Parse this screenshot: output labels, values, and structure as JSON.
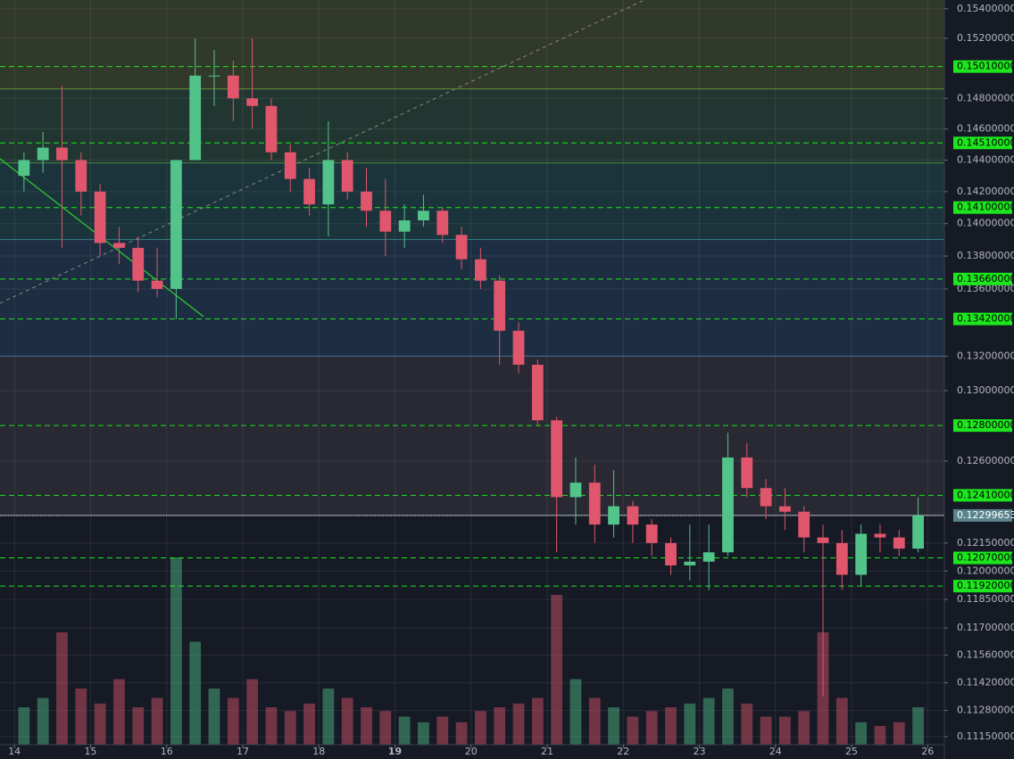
{
  "chart_data": {
    "type": "candlestick",
    "log": true,
    "grid": true,
    "up_color": "#52c48a",
    "down_color": "#e0566c",
    "xlim": [
      13.81,
      26.22
    ],
    "xticks": [
      14,
      15,
      16,
      17,
      18,
      19,
      20,
      21,
      22,
      23,
      24,
      25,
      26
    ],
    "bold_xtick": 19,
    "ylim": [
      0.1111,
      0.1546
    ],
    "yticks": [
      {
        "value": 0.154,
        "label": "0.15400000"
      },
      {
        "value": 0.152,
        "label": "0.15200000"
      },
      {
        "value": 0.148,
        "label": "0.14800000"
      },
      {
        "value": 0.146,
        "label": "0.14600000"
      },
      {
        "value": 0.144,
        "label": "0.14400000"
      },
      {
        "value": 0.142,
        "label": "0.14200000"
      },
      {
        "value": 0.14,
        "label": "0.14000000"
      },
      {
        "value": 0.138,
        "label": "0.13800000"
      },
      {
        "value": 0.136,
        "label": "0.13600000"
      },
      {
        "value": 0.132,
        "label": "0.13200000"
      },
      {
        "value": 0.13,
        "label": "0.13000000"
      },
      {
        "value": 0.126,
        "label": "0.12600000"
      },
      {
        "value": 0.1215,
        "label": "0.12150000"
      },
      {
        "value": 0.12,
        "label": "0.12000000"
      },
      {
        "value": 0.1185,
        "label": "0.11850000"
      },
      {
        "value": 0.117,
        "label": "0.11700000"
      },
      {
        "value": 0.1156,
        "label": "0.11560000"
      },
      {
        "value": 0.1142,
        "label": "0.11420000"
      },
      {
        "value": 0.1128,
        "label": "0.11280000"
      },
      {
        "value": 0.1115,
        "label": "0.11150000"
      }
    ],
    "zone_bounds": [
      0.1486,
      0.1438,
      0.139,
      0.132,
      0.123
    ],
    "zone_colors": [
      "#363f2c",
      "#233c33",
      "#1c3a40",
      "#1e3248",
      "#2b2d36"
    ],
    "zone_line_colors": [
      "#8fbf3a",
      "#5cbf4a",
      "#3fa8a8",
      "#3f8fbf",
      "#9aa0aa"
    ],
    "levels": [
      {
        "value": 0.1501,
        "label": "0.15010000"
      },
      {
        "value": 0.1451,
        "label": "0.14510000"
      },
      {
        "value": 0.141,
        "label": "0.14100000"
      },
      {
        "value": 0.1366,
        "label": "0.13660000"
      },
      {
        "value": 0.1342,
        "label": "0.13420000"
      },
      {
        "value": 0.128,
        "label": "0.12800000"
      },
      {
        "value": 0.1241,
        "label": "0.12410000"
      },
      {
        "value": 0.1207,
        "label": "0.12070000"
      },
      {
        "value": 0.1192,
        "label": "0.11920000"
      }
    ],
    "level_color": "#1ee61e",
    "current_price": {
      "value": 0.12299653,
      "label": "0.12299653"
    },
    "x": [
      14,
      14.25,
      14.5,
      14.75,
      15,
      15.25,
      15.5,
      15.75,
      16,
      16.25,
      16.5,
      16.75,
      17,
      17.25,
      17.5,
      17.75,
      18,
      18.25,
      18.5,
      18.75,
      19,
      19.25,
      19.5,
      19.75,
      20,
      20.25,
      20.5,
      20.75,
      21,
      21.25,
      21.5,
      21.75,
      22,
      22.25,
      22.5,
      22.75,
      23,
      23.25,
      23.5,
      23.75,
      24,
      24.25,
      24.5,
      24.75,
      25,
      25.25,
      25.5,
      25.75
    ],
    "open": [
      0.143,
      0.144,
      0.1448,
      0.144,
      0.142,
      0.1388,
      0.1385,
      0.1365,
      0.136,
      0.144,
      0.1495,
      0.1495,
      0.148,
      0.1475,
      0.1445,
      0.1428,
      0.1412,
      0.144,
      0.142,
      0.1408,
      0.1395,
      0.1402,
      0.1408,
      0.1393,
      0.1378,
      0.1365,
      0.1335,
      0.1315,
      0.1283,
      0.124,
      0.1248,
      0.1225,
      0.1235,
      0.1225,
      0.1215,
      0.1203,
      0.1205,
      0.121,
      0.1262,
      0.1245,
      0.1235,
      0.1232,
      0.1218,
      0.1215,
      0.1198,
      0.122,
      0.1218,
      0.1212
    ],
    "high": [
      0.1445,
      0.1458,
      0.1488,
      0.1445,
      0.1425,
      0.1398,
      0.1392,
      0.1385,
      0.144,
      0.152,
      0.1512,
      0.1505,
      0.152,
      0.148,
      0.145,
      0.1435,
      0.1465,
      0.1445,
      0.1435,
      0.1428,
      0.1412,
      0.1418,
      0.141,
      0.1398,
      0.1385,
      0.1368,
      0.134,
      0.1318,
      0.1285,
      0.1262,
      0.1258,
      0.1255,
      0.1238,
      0.1228,
      0.1218,
      0.1225,
      0.1225,
      0.1276,
      0.127,
      0.125,
      0.1245,
      0.1235,
      0.1225,
      0.1222,
      0.1225,
      0.1225,
      0.1222,
      0.124
    ],
    "low": [
      0.142,
      0.1432,
      0.1385,
      0.1405,
      0.138,
      0.1375,
      0.1358,
      0.1355,
      0.1342,
      0.144,
      0.1475,
      0.1465,
      0.146,
      0.144,
      0.142,
      0.1405,
      0.1392,
      0.1415,
      0.1398,
      0.138,
      0.1385,
      0.1398,
      0.1388,
      0.1372,
      0.136,
      0.1315,
      0.131,
      0.128,
      0.121,
      0.1225,
      0.1215,
      0.1218,
      0.1215,
      0.1208,
      0.1198,
      0.1195,
      0.119,
      0.1208,
      0.124,
      0.1228,
      0.1222,
      0.121,
      0.1135,
      0.119,
      0.1192,
      0.121,
      0.1208,
      0.121
    ],
    "close": [
      0.144,
      0.1448,
      0.144,
      0.142,
      0.1388,
      0.1385,
      0.1365,
      0.136,
      0.144,
      0.1495,
      0.1495,
      0.148,
      0.1475,
      0.1445,
      0.1428,
      0.1412,
      0.144,
      0.142,
      0.1408,
      0.1395,
      0.1402,
      0.1408,
      0.1393,
      0.1378,
      0.1365,
      0.1335,
      0.1315,
      0.1283,
      0.124,
      0.1248,
      0.1225,
      0.1235,
      0.1225,
      0.1215,
      0.1203,
      0.1205,
      0.121,
      0.1262,
      0.1245,
      0.1235,
      0.1232,
      0.1218,
      0.1215,
      0.1198,
      0.122,
      0.1218,
      0.1212,
      0.123
    ],
    "volume": [
      20,
      25,
      60,
      30,
      22,
      35,
      20,
      25,
      100,
      55,
      30,
      25,
      35,
      20,
      18,
      22,
      30,
      25,
      20,
      18,
      15,
      12,
      15,
      12,
      18,
      20,
      22,
      25,
      80,
      35,
      25,
      20,
      15,
      18,
      20,
      22,
      25,
      30,
      22,
      15,
      15,
      18,
      60,
      25,
      12,
      10,
      12,
      20
    ]
  }
}
